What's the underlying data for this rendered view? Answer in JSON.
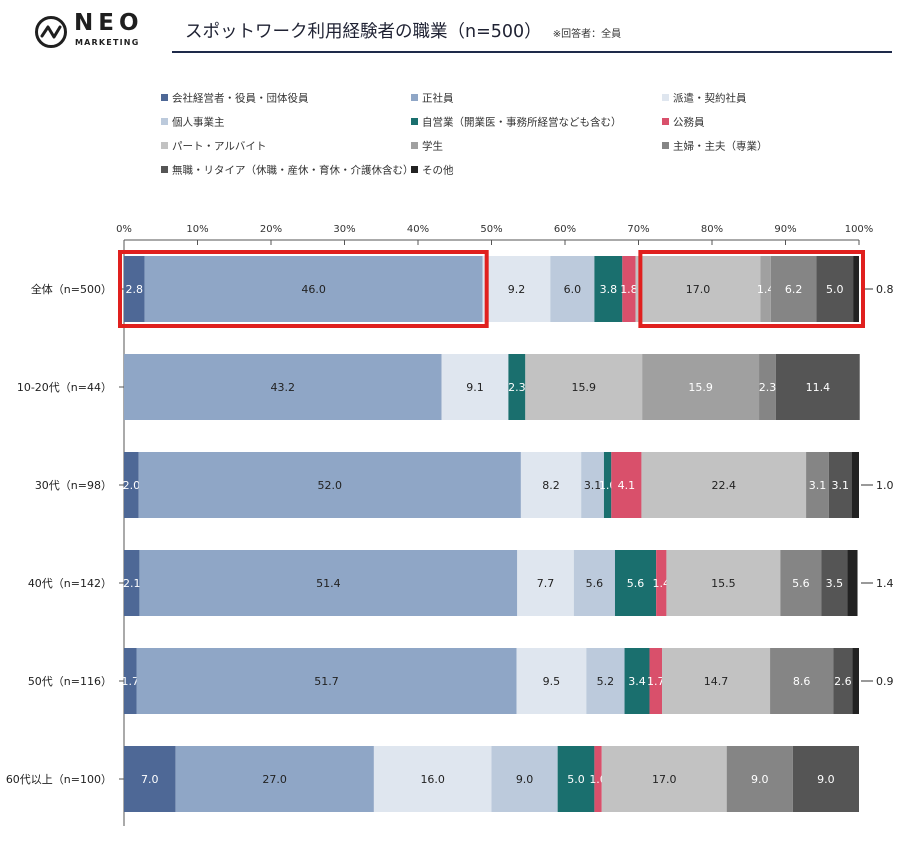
{
  "brand": {
    "name": "NEO",
    "sub": "MARKETING"
  },
  "header": {
    "title": "スポットワーク利用経験者の職業（n=500）",
    "subtitle": "※回答者：全員"
  },
  "chart_data": {
    "type": "bar",
    "orientation": "horizontal-stacked-100",
    "xlim": [
      0,
      100
    ],
    "x_ticks": [
      "0%",
      "10%",
      "20%",
      "30%",
      "40%",
      "50%",
      "60%",
      "70%",
      "80%",
      "90%",
      "100%"
    ],
    "categories": [
      "全体（n=500）",
      "10-20代（n=44）",
      "30代（n=98）",
      "40代（n=142）",
      "50代（n=116）",
      "60代以上（n=100）"
    ],
    "legend_position": "top",
    "series": [
      {
        "name": "会社経営者・役員・団体役員",
        "color": "#4e6896",
        "label_color": "#ffffff",
        "values": [
          2.8,
          0,
          2.0,
          2.1,
          1.7,
          7.0
        ],
        "labels": [
          "2.8",
          "",
          "2.0",
          "2.1",
          "1.7",
          "7.0"
        ]
      },
      {
        "name": "正社員",
        "color": "#8fa6c6",
        "label_color": "#222222",
        "values": [
          46.0,
          43.2,
          52.0,
          51.4,
          51.7,
          27.0
        ],
        "labels": [
          "46.0",
          "43.2",
          "52.0",
          "51.4",
          "51.7",
          "27.0"
        ]
      },
      {
        "name": "派遣・契約社員",
        "color": "#dfe6ef",
        "label_color": "#222222",
        "values": [
          9.2,
          9.1,
          8.2,
          7.7,
          9.5,
          16.0
        ],
        "labels": [
          "9.2",
          "9.1",
          "8.2",
          "7.7",
          "9.5",
          "16.0"
        ]
      },
      {
        "name": "個人事業主",
        "color": "#bccadc",
        "label_color": "#222222",
        "values": [
          6.0,
          0,
          3.1,
          5.6,
          5.2,
          9.0
        ],
        "labels": [
          "6.0",
          "",
          "3.1",
          "5.6",
          "5.2",
          "9.0"
        ]
      },
      {
        "name": "自営業（開業医・事務所経営なども含む）",
        "color": "#1a6f6e",
        "label_color": "#ffffff",
        "values": [
          3.8,
          2.3,
          1.0,
          5.6,
          3.4,
          5.0
        ],
        "labels": [
          "3.8",
          "2.3",
          "1.0",
          "5.6",
          "3.4",
          "5.0"
        ]
      },
      {
        "name": "公務員",
        "color": "#d9506b",
        "label_color": "#ffffff",
        "values": [
          1.8,
          0,
          4.1,
          1.4,
          1.7,
          1.0
        ],
        "labels": [
          "1.8",
          "",
          "4.1",
          "1.4",
          "1.7",
          "1.0"
        ]
      },
      {
        "name": "パート・アルバイト",
        "color": "#c2c2c2",
        "label_color": "#222222",
        "values": [
          17.0,
          15.9,
          22.4,
          15.5,
          14.7,
          17.0
        ],
        "labels": [
          "17.0",
          "15.9",
          "22.4",
          "15.5",
          "14.7",
          "17.0"
        ]
      },
      {
        "name": "学生",
        "color": "#a0a0a0",
        "label_color": "#ffffff",
        "values": [
          1.4,
          15.9,
          0,
          0,
          0,
          0
        ],
        "labels": [
          "1.4",
          "15.9",
          "",
          "",
          "",
          ""
        ]
      },
      {
        "name": "主婦・主夫（専業）",
        "color": "#858585",
        "label_color": "#ffffff",
        "values": [
          6.2,
          2.3,
          3.1,
          5.6,
          8.6,
          9.0
        ],
        "labels": [
          "6.2",
          "2.3",
          "3.1",
          "5.6",
          "8.6",
          "9.0"
        ]
      },
      {
        "name": "無職・リタイア（休職・産休・育休・介護休含む）",
        "color": "#555555",
        "label_color": "#ffffff",
        "values": [
          5.0,
          11.4,
          3.1,
          3.5,
          2.6,
          9.0
        ],
        "labels": [
          "5.0",
          "11.4",
          "3.1",
          "3.5",
          "2.6",
          "9.0"
        ]
      },
      {
        "name": "その他",
        "color": "#222222",
        "label_color": "#222222",
        "values": [
          0.8,
          0,
          1.0,
          1.4,
          0.9,
          0
        ],
        "labels": [
          "",
          "",
          "",
          "",
          "",
          ""
        ]
      }
    ],
    "outside_labels": [
      "0.8",
      "",
      "1.0",
      "1.4",
      "0.9",
      ""
    ],
    "highlights": [
      {
        "row": 0,
        "from": 0,
        "to": 48.8,
        "color": "#e0201e"
      },
      {
        "row": 0,
        "from": 70.8,
        "to": 100,
        "color": "#e0201e"
      }
    ]
  }
}
